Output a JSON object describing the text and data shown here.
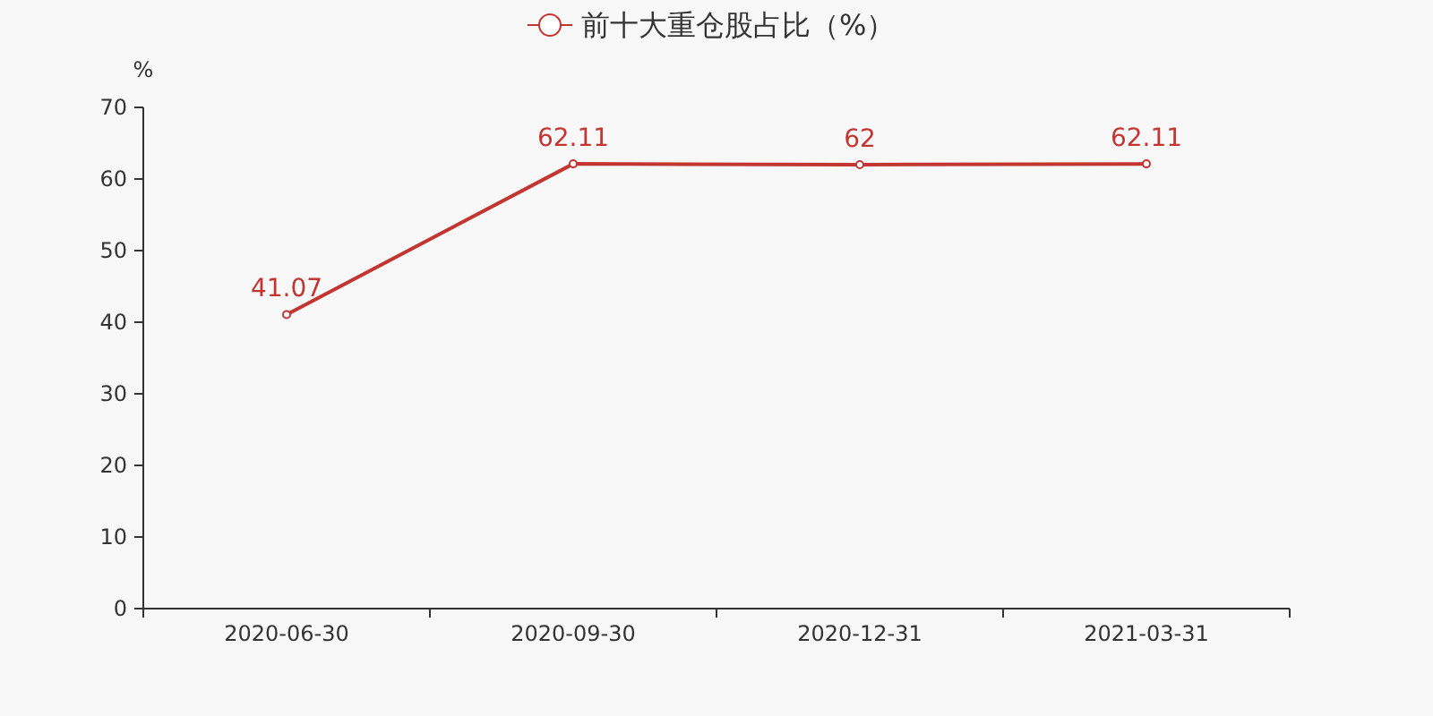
{
  "chart_data": {
    "type": "line",
    "categories": [
      "2020-06-30",
      "2020-09-30",
      "2020-12-31",
      "2021-03-31"
    ],
    "series": [
      {
        "name": "前十大重仓股占比（%）",
        "color": "#c23531",
        "values": [
          41.07,
          62.11,
          62,
          62.11
        ]
      }
    ],
    "ylabel": "%",
    "ylim": [
      0,
      70
    ],
    "yticks": [
      0,
      10,
      20,
      30,
      40,
      50,
      60,
      70
    ],
    "legend": "top",
    "marker": "circle",
    "data_labels": true
  }
}
